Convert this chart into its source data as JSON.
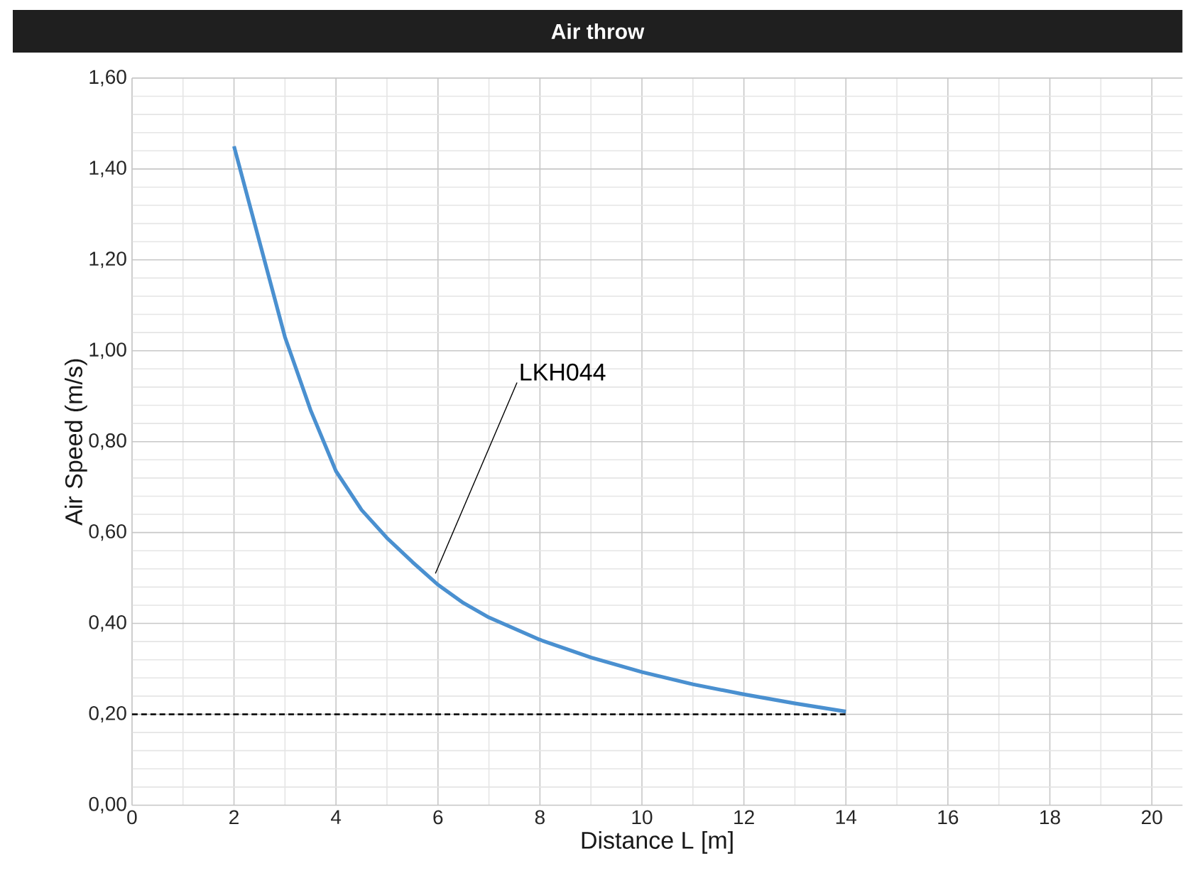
{
  "chart_data": {
    "type": "line",
    "title": "Air throw",
    "xlabel": "Distance L [m]",
    "ylabel": "Air Speed (m/s)",
    "xlim": [
      0,
      20.6
    ],
    "ylim": [
      0,
      1.6
    ],
    "xticks": [
      0,
      2,
      4,
      6,
      8,
      10,
      12,
      14,
      16,
      18,
      20
    ],
    "yticks": [
      {
        "value": 0,
        "label": "0,00"
      },
      {
        "value": 0.2,
        "label": "0,20"
      },
      {
        "value": 0.4,
        "label": "0,40"
      },
      {
        "value": 0.6,
        "label": "0,60"
      },
      {
        "value": 0.8,
        "label": "0,80"
      },
      {
        "value": 1.0,
        "label": "1,00"
      },
      {
        "value": 1.2,
        "label": "1,20"
      },
      {
        "value": 1.4,
        "label": "1,40"
      },
      {
        "value": 1.6,
        "label": "1,60"
      }
    ],
    "grid": true,
    "series": [
      {
        "color": "#4a90d0",
        "line_style": "solid",
        "x": [
          2,
          2.5,
          3,
          3.5,
          4,
          4.5,
          5,
          5.5,
          6,
          6.5,
          7,
          8,
          9,
          10,
          11,
          12,
          13,
          14
        ],
        "values": [
          1.45,
          1.24,
          1.03,
          0.87,
          0.735,
          0.65,
          0.588,
          0.535,
          0.485,
          0.445,
          0.413,
          0.364,
          0.325,
          0.293,
          0.266,
          0.244,
          0.224,
          0.206
        ]
      },
      {
        "color": "#000000",
        "line_style": "dashed",
        "x": [
          0,
          14
        ],
        "values": [
          0.2,
          0.2
        ]
      }
    ],
    "annotations": [
      {
        "text": "LKH044",
        "x": 6,
        "y": 0.49
      }
    ]
  }
}
